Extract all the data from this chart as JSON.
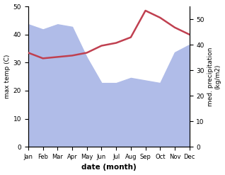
{
  "months": [
    "Jan",
    "Feb",
    "Mar",
    "Apr",
    "May",
    "Jun",
    "Jul",
    "Aug",
    "Sep",
    "Oct",
    "Nov",
    "Dec"
  ],
  "month_indices": [
    0,
    1,
    2,
    3,
    4,
    5,
    6,
    7,
    8,
    9,
    10,
    11
  ],
  "precipitation": [
    48,
    46,
    48,
    47,
    35,
    25,
    25,
    27,
    26,
    25,
    37,
    40
  ],
  "temperature": [
    33.5,
    31.5,
    32.0,
    32.5,
    33.5,
    36.0,
    37.0,
    39.0,
    48.5,
    46.0,
    42.5,
    40.0
  ],
  "precip_color": "#b0bce8",
  "temp_line_color": "#c04050",
  "ylabel_left": "max temp (C)",
  "ylabel_right": "med. precipitation\n(kg/m2)",
  "xlabel": "date (month)",
  "ylim_left": [
    0,
    50
  ],
  "ylim_right": [
    0,
    55
  ],
  "yticks_left": [
    0,
    10,
    20,
    30,
    40,
    50
  ],
  "yticks_right": [
    0,
    10,
    20,
    30,
    40,
    50
  ],
  "bg_color": "#ffffff"
}
